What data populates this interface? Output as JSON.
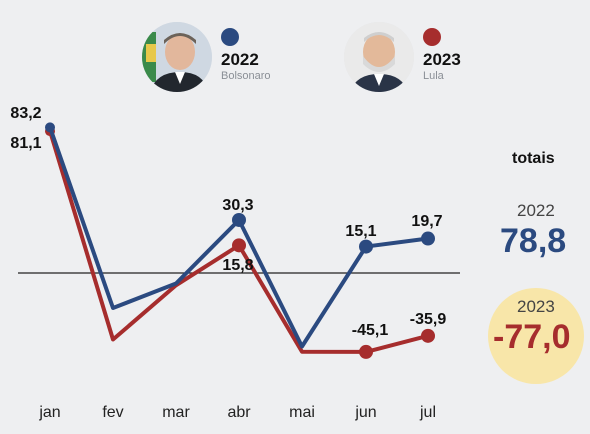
{
  "legend": {
    "items": [
      {
        "year": "2022",
        "name": "Bolsonaro",
        "color": "#2b4a80",
        "portrait_icon": "man-portrait-dark-suit-icon"
      },
      {
        "year": "2023",
        "name": "Lula",
        "color": "#a62d2d",
        "portrait_icon": "man-portrait-gray-beard-icon"
      }
    ]
  },
  "totals": {
    "title": "totais",
    "items": [
      {
        "year": "2022",
        "value": "78,8",
        "color": "#2b4a80"
      },
      {
        "year": "2023",
        "value": "-77,0",
        "color": "#a62d2d",
        "highlight": "#f8e6a9"
      }
    ]
  },
  "chart_data": {
    "type": "line",
    "categories": [
      "jan",
      "fev",
      "mar",
      "abr",
      "mai",
      "jun",
      "jul"
    ],
    "series": [
      {
        "name": "2022",
        "color": "#2b4a80",
        "values": [
          83.2,
          -20,
          -6,
          30.3,
          -42,
          15.1,
          19.7
        ],
        "labels": [
          "83,2",
          null,
          null,
          "30,3",
          null,
          "15,1",
          "19,7"
        ]
      },
      {
        "name": "2023",
        "color": "#a62d2d",
        "values": [
          81.1,
          -38,
          -7,
          15.8,
          -45,
          -45.1,
          -35.9
        ],
        "labels": [
          "81,1",
          null,
          null,
          "15,8",
          null,
          "-45,1",
          "-35,9"
        ]
      }
    ],
    "zero_line": true,
    "markers_on": [
      0,
      3,
      5,
      6
    ]
  }
}
